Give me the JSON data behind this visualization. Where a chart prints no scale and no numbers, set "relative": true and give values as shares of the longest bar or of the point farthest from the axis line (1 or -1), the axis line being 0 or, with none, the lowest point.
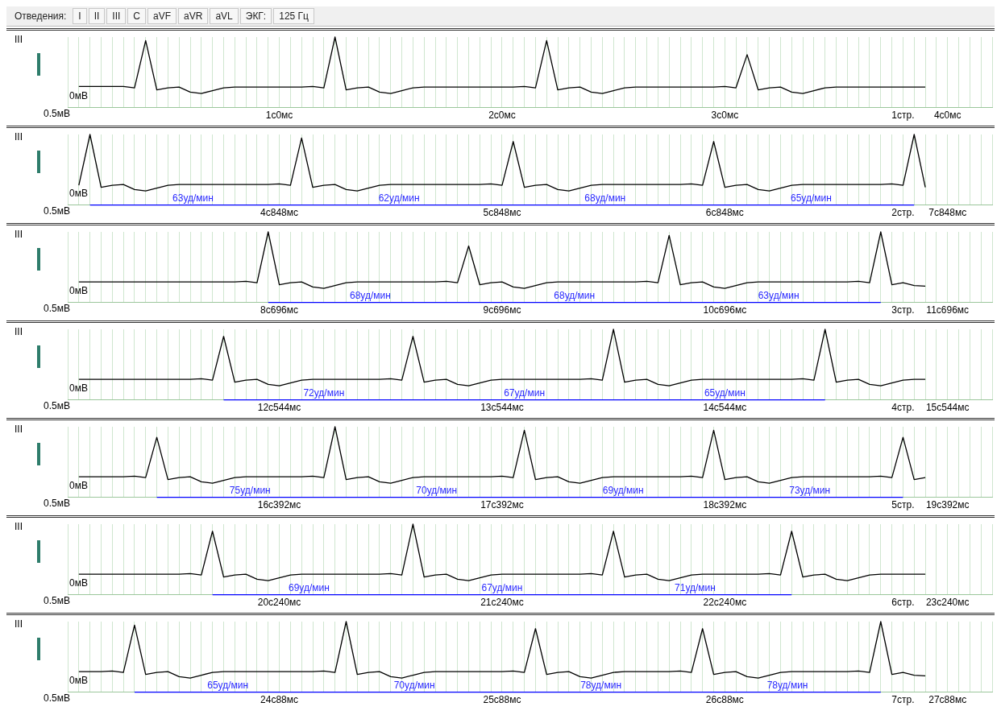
{
  "chart_data": [
    {
      "type": "other",
      "annotations": [
        "Отведения:",
        "I",
        "II",
        "III",
        "C",
        "aVF",
        "aVR",
        "aVL",
        "ЭКГ:",
        "125 Гц"
      ]
    },
    {
      "type": "line",
      "relative": true,
      "grid": "x",
      "categories": [
        null,
        null,
        null,
        null,
        null,
        null,
        null,
        null,
        null,
        null,
        null,
        null,
        null,
        null,
        null,
        null,
        null,
        null,
        null,
        "1с0мс",
        null,
        null,
        null,
        null,
        null,
        null,
        null,
        null,
        null,
        null,
        null,
        null,
        null,
        null,
        null,
        null,
        null,
        null,
        null,
        "2с0мс",
        null,
        null,
        null,
        null,
        null,
        null,
        null,
        null,
        null,
        null,
        null,
        null,
        null,
        null,
        null,
        null,
        null,
        null,
        null,
        "3с0мс",
        null,
        null,
        null,
        null,
        null,
        null,
        null,
        null,
        null,
        null,
        null,
        null,
        null,
        null,
        null,
        "1стр.",
        null,
        null,
        null,
        "4с0мс",
        null,
        null,
        null,
        null
      ],
      "annotations": [
        "III",
        "0мВ",
        "0.5мВ"
      ],
      "series": [
        {
          "color": "#000000",
          "values": [
            null,
            0.3,
            0.3,
            0.3,
            0.3,
            0.3,
            0.28,
            0.95,
            0.25,
            0.28,
            0.29,
            0.22,
            0.2,
            0.24,
            0.28,
            0.29,
            0.29,
            0.29,
            0.29,
            0.29,
            0.29,
            0.29,
            0.3,
            0.28,
            1.0,
            0.25,
            0.28,
            0.29,
            0.22,
            0.2,
            0.24,
            0.28,
            0.29,
            0.29,
            0.29,
            0.29,
            0.29,
            0.29,
            0.29,
            0.29,
            0.29,
            0.3,
            0.28,
            0.95,
            0.25,
            0.28,
            0.29,
            0.22,
            0.2,
            0.24,
            0.28,
            0.29,
            0.29,
            0.29,
            0.29,
            0.29,
            0.29,
            0.29,
            0.29,
            0.3,
            0.28,
            0.75,
            0.25,
            0.28,
            0.29,
            0.22,
            0.2,
            0.24,
            0.28,
            0.29,
            0.29,
            0.29,
            0.29,
            0.29,
            0.29,
            0.29,
            0.29,
            0.29,
            null,
            null,
            null,
            null,
            null,
            null
          ]
        }
      ]
    },
    {
      "type": "line",
      "relative": true,
      "grid": "x",
      "categories": [
        null,
        null,
        null,
        null,
        null,
        null,
        null,
        null,
        null,
        null,
        null,
        null,
        null,
        null,
        null,
        null,
        null,
        null,
        null,
        "4с848мс",
        null,
        null,
        null,
        null,
        null,
        null,
        null,
        null,
        null,
        null,
        null,
        null,
        null,
        null,
        null,
        null,
        null,
        null,
        null,
        "5с848мс",
        null,
        null,
        null,
        null,
        null,
        null,
        null,
        null,
        null,
        null,
        null,
        null,
        null,
        null,
        null,
        null,
        null,
        null,
        null,
        "6с848мс",
        null,
        null,
        null,
        null,
        null,
        null,
        null,
        null,
        null,
        null,
        null,
        null,
        null,
        null,
        null,
        "2стр.",
        null,
        null,
        null,
        "7с848мс",
        null,
        null,
        null,
        null
      ],
      "annotations": [
        "III",
        "0мВ",
        "0.5мВ",
        "63уд/мин",
        "62уд/мин",
        "68уд/мин",
        "65уд/мин"
      ],
      "series": [
        {
          "color": "#000000",
          "values": [
            null,
            0.28,
            1.0,
            0.25,
            0.28,
            0.29,
            0.22,
            0.2,
            0.24,
            0.28,
            0.29,
            0.29,
            0.29,
            0.29,
            0.29,
            0.29,
            0.29,
            0.29,
            0.29,
            0.3,
            0.28,
            0.95,
            0.25,
            0.28,
            0.29,
            0.22,
            0.2,
            0.24,
            0.28,
            0.29,
            0.29,
            0.29,
            0.29,
            0.29,
            0.29,
            0.29,
            0.29,
            0.29,
            0.3,
            0.28,
            0.9,
            0.25,
            0.28,
            0.29,
            0.22,
            0.2,
            0.24,
            0.28,
            0.29,
            0.29,
            0.29,
            0.29,
            0.29,
            0.29,
            0.29,
            0.29,
            0.3,
            0.28,
            0.9,
            0.25,
            0.28,
            0.29,
            0.22,
            0.2,
            0.24,
            0.28,
            0.29,
            0.29,
            0.29,
            0.29,
            0.29,
            0.29,
            0.29,
            0.29,
            0.3,
            0.28,
            1.0,
            0.25,
            null,
            null,
            null,
            null,
            null,
            null
          ]
        },
        {
          "color": "#0000ff",
          "values": [
            null,
            null,
            0,
            0,
            0,
            0,
            0,
            0,
            0,
            0,
            0,
            0,
            0,
            0,
            0,
            0,
            0,
            0,
            0,
            0,
            0,
            0,
            0,
            0,
            0,
            0,
            0,
            0,
            0,
            0,
            0,
            0,
            0,
            0,
            0,
            0,
            0,
            0,
            0,
            0,
            0,
            0,
            0,
            0,
            0,
            0,
            0,
            0,
            0,
            0,
            0,
            0,
            0,
            0,
            0,
            0,
            0,
            0,
            0,
            0,
            0,
            0,
            0,
            0,
            0,
            0,
            0,
            0,
            0,
            0,
            0,
            0,
            0,
            0,
            0,
            0,
            0,
            null,
            null,
            null,
            null,
            null,
            null,
            null
          ]
        }
      ]
    },
    {
      "type": "line",
      "relative": true,
      "grid": "x",
      "categories": [
        null,
        null,
        null,
        null,
        null,
        null,
        null,
        null,
        null,
        null,
        null,
        null,
        null,
        null,
        null,
        null,
        null,
        null,
        null,
        "8с696мс",
        null,
        null,
        null,
        null,
        null,
        null,
        null,
        null,
        null,
        null,
        null,
        null,
        null,
        null,
        null,
        null,
        null,
        null,
        null,
        "9с696мс",
        null,
        null,
        null,
        null,
        null,
        null,
        null,
        null,
        null,
        null,
        null,
        null,
        null,
        null,
        null,
        null,
        null,
        null,
        null,
        "10с696мс",
        null,
        null,
        null,
        null,
        null,
        null,
        null,
        null,
        null,
        null,
        null,
        null,
        null,
        null,
        null,
        "3стр.",
        null,
        null,
        null,
        "11с696мс",
        null,
        null,
        null,
        null
      ],
      "annotations": [
        "III",
        "0мВ",
        "0.5мВ",
        "68уд/мин",
        "68уд/мин",
        "63уд/мин"
      ],
      "series": [
        {
          "color": "#000000",
          "values": [
            null,
            0.29,
            0.29,
            0.29,
            0.29,
            0.29,
            0.29,
            0.29,
            0.29,
            0.29,
            0.29,
            0.29,
            0.29,
            0.29,
            0.29,
            0.29,
            0.3,
            0.28,
            1.0,
            0.25,
            0.28,
            0.29,
            0.22,
            0.2,
            0.24,
            0.28,
            0.29,
            0.29,
            0.29,
            0.29,
            0.29,
            0.29,
            0.29,
            0.29,
            0.3,
            0.28,
            0.8,
            0.25,
            0.28,
            0.29,
            0.22,
            0.2,
            0.24,
            0.28,
            0.29,
            0.29,
            0.29,
            0.29,
            0.29,
            0.29,
            0.29,
            0.29,
            0.3,
            0.28,
            0.95,
            0.25,
            0.28,
            0.29,
            0.22,
            0.2,
            0.24,
            0.28,
            0.29,
            0.29,
            0.29,
            0.29,
            0.29,
            0.29,
            0.29,
            0.29,
            0.29,
            0.3,
            0.28,
            1.0,
            0.25,
            0.28,
            0.24,
            0.23,
            null,
            null,
            null,
            null,
            null,
            null
          ]
        },
        {
          "color": "#0000ff",
          "values": [
            null,
            null,
            null,
            null,
            null,
            null,
            null,
            null,
            null,
            null,
            null,
            null,
            null,
            null,
            null,
            null,
            null,
            null,
            0,
            0,
            0,
            0,
            0,
            0,
            0,
            0,
            0,
            0,
            0,
            0,
            0,
            0,
            0,
            0,
            0,
            0,
            0,
            0,
            0,
            0,
            0,
            0,
            0,
            0,
            0,
            0,
            0,
            0,
            0,
            0,
            0,
            0,
            0,
            0,
            0,
            0,
            0,
            0,
            0,
            0,
            0,
            0,
            0,
            0,
            0,
            0,
            0,
            0,
            0,
            0,
            0,
            0,
            0,
            0,
            null,
            null,
            null,
            null,
            null,
            null,
            null,
            null,
            null,
            null
          ]
        }
      ]
    },
    {
      "type": "line",
      "relative": true,
      "grid": "x",
      "categories": [
        null,
        null,
        null,
        null,
        null,
        null,
        null,
        null,
        null,
        null,
        null,
        null,
        null,
        null,
        null,
        null,
        null,
        null,
        null,
        "12с544мс",
        null,
        null,
        null,
        null,
        null,
        null,
        null,
        null,
        null,
        null,
        null,
        null,
        null,
        null,
        null,
        null,
        null,
        null,
        null,
        "13с544мс",
        null,
        null,
        null,
        null,
        null,
        null,
        null,
        null,
        null,
        null,
        null,
        null,
        null,
        null,
        null,
        null,
        null,
        null,
        null,
        "14с544мс",
        null,
        null,
        null,
        null,
        null,
        null,
        null,
        null,
        null,
        null,
        null,
        null,
        null,
        null,
        null,
        "4стр.",
        null,
        null,
        null,
        "15с544мс",
        null,
        null,
        null,
        null
      ],
      "annotations": [
        "III",
        "0мВ",
        "0.5мВ",
        "72уд/мин",
        "67уд/мин",
        "65уд/мин"
      ],
      "series": [
        {
          "color": "#000000",
          "values": [
            null,
            0.29,
            0.29,
            0.29,
            0.29,
            0.29,
            0.29,
            0.29,
            0.29,
            0.29,
            0.29,
            0.29,
            0.3,
            0.28,
            0.9,
            0.25,
            0.28,
            0.29,
            0.22,
            0.2,
            0.24,
            0.28,
            0.29,
            0.29,
            0.29,
            0.29,
            0.29,
            0.29,
            0.29,
            0.3,
            0.28,
            0.9,
            0.25,
            0.28,
            0.29,
            0.22,
            0.2,
            0.24,
            0.28,
            0.29,
            0.29,
            0.29,
            0.29,
            0.29,
            0.29,
            0.29,
            0.29,
            0.3,
            0.28,
            1.0,
            0.25,
            0.28,
            0.29,
            0.22,
            0.2,
            0.24,
            0.28,
            0.29,
            0.29,
            0.29,
            0.29,
            0.29,
            0.29,
            0.29,
            0.29,
            0.29,
            0.3,
            0.28,
            1.0,
            0.25,
            0.28,
            0.29,
            0.22,
            0.2,
            0.24,
            0.28,
            0.29,
            0.29,
            null,
            null,
            null,
            null,
            null,
            null
          ]
        },
        {
          "color": "#0000ff",
          "values": [
            null,
            null,
            null,
            null,
            null,
            null,
            null,
            null,
            null,
            null,
            null,
            null,
            null,
            null,
            0,
            0,
            0,
            0,
            0,
            0,
            0,
            0,
            0,
            0,
            0,
            0,
            0,
            0,
            0,
            0,
            0,
            0,
            0,
            0,
            0,
            0,
            0,
            0,
            0,
            0,
            0,
            0,
            0,
            0,
            0,
            0,
            0,
            0,
            0,
            0,
            0,
            0,
            0,
            0,
            0,
            0,
            0,
            0,
            0,
            0,
            0,
            0,
            0,
            0,
            0,
            0,
            0,
            0,
            0,
            null,
            null,
            null,
            null,
            null,
            null,
            null,
            null,
            null,
            null,
            null,
            null,
            null,
            null,
            null
          ]
        }
      ]
    },
    {
      "type": "line",
      "relative": true,
      "grid": "x",
      "categories": [
        null,
        null,
        null,
        null,
        null,
        null,
        null,
        null,
        null,
        null,
        null,
        null,
        null,
        null,
        null,
        null,
        null,
        null,
        null,
        "16с392мс",
        null,
        null,
        null,
        null,
        null,
        null,
        null,
        null,
        null,
        null,
        null,
        null,
        null,
        null,
        null,
        null,
        null,
        null,
        null,
        "17с392мс",
        null,
        null,
        null,
        null,
        null,
        null,
        null,
        null,
        null,
        null,
        null,
        null,
        null,
        null,
        null,
        null,
        null,
        null,
        null,
        "18с392мс",
        null,
        null,
        null,
        null,
        null,
        null,
        null,
        null,
        null,
        null,
        null,
        null,
        null,
        null,
        null,
        "5стр.",
        null,
        null,
        null,
        "19с392мс",
        null,
        null,
        null,
        null
      ],
      "annotations": [
        "III",
        "0мВ",
        "0.5мВ",
        "75уд/мин",
        "70уд/мин",
        "69уд/мин",
        "73уд/мин"
      ],
      "series": [
        {
          "color": "#000000",
          "values": [
            null,
            0.29,
            0.29,
            0.29,
            0.29,
            0.29,
            0.3,
            0.28,
            0.85,
            0.25,
            0.28,
            0.29,
            0.22,
            0.2,
            0.24,
            0.28,
            0.29,
            0.29,
            0.29,
            0.29,
            0.29,
            0.29,
            0.3,
            0.28,
            1.0,
            0.25,
            0.28,
            0.29,
            0.22,
            0.2,
            0.24,
            0.28,
            0.29,
            0.29,
            0.29,
            0.29,
            0.29,
            0.29,
            0.29,
            0.3,
            0.28,
            0.95,
            0.25,
            0.28,
            0.29,
            0.22,
            0.2,
            0.24,
            0.28,
            0.29,
            0.29,
            0.29,
            0.29,
            0.29,
            0.29,
            0.29,
            0.3,
            0.28,
            0.95,
            0.25,
            0.28,
            0.29,
            0.22,
            0.2,
            0.24,
            0.28,
            0.29,
            0.29,
            0.29,
            0.29,
            0.29,
            0.29,
            0.29,
            0.3,
            0.28,
            0.85,
            0.25,
            0.28,
            null,
            null,
            null,
            null,
            null,
            null
          ]
        },
        {
          "color": "#0000ff",
          "values": [
            null,
            null,
            null,
            null,
            null,
            null,
            null,
            null,
            0,
            0,
            0,
            0,
            0,
            0,
            0,
            0,
            0,
            0,
            0,
            0,
            0,
            0,
            0,
            0,
            0,
            0,
            0,
            0,
            0,
            0,
            0,
            0,
            0,
            0,
            0,
            0,
            0,
            0,
            0,
            0,
            0,
            0,
            0,
            0,
            0,
            0,
            0,
            0,
            0,
            0,
            0,
            0,
            0,
            0,
            0,
            0,
            0,
            0,
            0,
            0,
            0,
            0,
            0,
            0,
            0,
            0,
            0,
            0,
            0,
            0,
            0,
            0,
            0,
            0,
            0,
            0,
            null,
            null,
            null,
            null,
            null,
            null,
            null,
            null
          ]
        }
      ]
    },
    {
      "type": "line",
      "relative": true,
      "grid": "x",
      "categories": [
        null,
        null,
        null,
        null,
        null,
        null,
        null,
        null,
        null,
        null,
        null,
        null,
        null,
        null,
        null,
        null,
        null,
        null,
        null,
        "20с240мс",
        null,
        null,
        null,
        null,
        null,
        null,
        null,
        null,
        null,
        null,
        null,
        null,
        null,
        null,
        null,
        null,
        null,
        null,
        null,
        "21с240мс",
        null,
        null,
        null,
        null,
        null,
        null,
        null,
        null,
        null,
        null,
        null,
        null,
        null,
        null,
        null,
        null,
        null,
        null,
        null,
        "22с240мс",
        null,
        null,
        null,
        null,
        null,
        null,
        null,
        null,
        null,
        null,
        null,
        null,
        null,
        null,
        null,
        "6стр.",
        null,
        null,
        null,
        "23с240мс",
        null,
        null,
        null,
        null
      ],
      "annotations": [
        "III",
        "0мВ",
        "0.5мВ",
        "69уд/мин",
        "67уд/мин",
        "71уд/мин"
      ],
      "series": [
        {
          "color": "#000000",
          "values": [
            null,
            0.29,
            0.29,
            0.29,
            0.29,
            0.29,
            0.29,
            0.29,
            0.29,
            0.29,
            0.29,
            0.3,
            0.28,
            0.9,
            0.25,
            0.28,
            0.29,
            0.22,
            0.2,
            0.24,
            0.28,
            0.29,
            0.29,
            0.29,
            0.29,
            0.29,
            0.29,
            0.29,
            0.29,
            0.3,
            0.28,
            1.0,
            0.25,
            0.28,
            0.29,
            0.22,
            0.2,
            0.24,
            0.28,
            0.29,
            0.29,
            0.29,
            0.29,
            0.29,
            0.29,
            0.29,
            0.29,
            0.3,
            0.28,
            0.9,
            0.25,
            0.28,
            0.29,
            0.22,
            0.2,
            0.24,
            0.28,
            0.29,
            0.29,
            0.29,
            0.29,
            0.29,
            0.29,
            0.3,
            0.28,
            0.9,
            0.25,
            0.28,
            0.29,
            0.22,
            0.2,
            0.24,
            0.28,
            0.29,
            0.29,
            0.29,
            0.29,
            0.29,
            null,
            null,
            null,
            null,
            null,
            null
          ]
        },
        {
          "color": "#0000ff",
          "values": [
            null,
            null,
            null,
            null,
            null,
            null,
            null,
            null,
            null,
            null,
            null,
            null,
            null,
            0,
            0,
            0,
            0,
            0,
            0,
            0,
            0,
            0,
            0,
            0,
            0,
            0,
            0,
            0,
            0,
            0,
            0,
            0,
            0,
            0,
            0,
            0,
            0,
            0,
            0,
            0,
            0,
            0,
            0,
            0,
            0,
            0,
            0,
            0,
            0,
            0,
            0,
            0,
            0,
            0,
            0,
            0,
            0,
            0,
            0,
            0,
            0,
            0,
            0,
            0,
            0,
            0,
            null,
            null,
            null,
            null,
            null,
            null,
            null,
            null,
            null,
            null,
            null,
            null,
            null,
            null,
            null,
            null,
            null,
            null
          ]
        }
      ]
    },
    {
      "type": "line",
      "relative": true,
      "grid": "x",
      "categories": [
        null,
        null,
        null,
        null,
        null,
        null,
        null,
        null,
        null,
        null,
        null,
        null,
        null,
        null,
        null,
        null,
        null,
        null,
        null,
        "24с88мс",
        null,
        null,
        null,
        null,
        null,
        null,
        null,
        null,
        null,
        null,
        null,
        null,
        null,
        null,
        null,
        null,
        null,
        null,
        null,
        "25с88мс",
        null,
        null,
        null,
        null,
        null,
        null,
        null,
        null,
        null,
        null,
        null,
        null,
        null,
        null,
        null,
        null,
        null,
        null,
        null,
        "26с88мс",
        null,
        null,
        null,
        null,
        null,
        null,
        null,
        null,
        null,
        null,
        null,
        null,
        null,
        null,
        null,
        "7стр.",
        null,
        null,
        null,
        "27с88мс",
        null,
        null,
        null,
        null
      ],
      "annotations": [
        "III",
        "0мВ",
        "0.5мВ",
        "65уд/мин",
        "70уд/мин",
        "78уд/мин",
        "78уд/мин"
      ],
      "series": [
        {
          "color": "#000000",
          "values": [
            null,
            0.29,
            0.29,
            0.29,
            0.3,
            0.28,
            0.95,
            0.25,
            0.28,
            0.29,
            0.22,
            0.2,
            0.24,
            0.28,
            0.29,
            0.29,
            0.29,
            0.29,
            0.29,
            0.29,
            0.29,
            0.29,
            0.29,
            0.3,
            0.28,
            1.0,
            0.25,
            0.28,
            0.29,
            0.22,
            0.2,
            0.24,
            0.28,
            0.29,
            0.29,
            0.29,
            0.29,
            0.29,
            0.29,
            0.29,
            0.3,
            0.28,
            0.9,
            0.25,
            0.28,
            0.29,
            0.22,
            0.2,
            0.24,
            0.28,
            0.29,
            0.29,
            0.29,
            0.29,
            0.29,
            0.3,
            0.28,
            0.9,
            0.25,
            0.28,
            0.29,
            0.22,
            0.2,
            0.24,
            0.28,
            0.29,
            0.29,
            0.29,
            0.29,
            0.29,
            0.29,
            0.3,
            0.28,
            1.0,
            0.25,
            0.28,
            0.24,
            0.23,
            null,
            null,
            null,
            null,
            null,
            null
          ]
        },
        {
          "color": "#0000ff",
          "values": [
            null,
            null,
            null,
            null,
            null,
            null,
            0,
            0,
            0,
            0,
            0,
            0,
            0,
            0,
            0,
            0,
            0,
            0,
            0,
            0,
            0,
            0,
            0,
            0,
            0,
            0,
            0,
            0,
            0,
            0,
            0,
            0,
            0,
            0,
            0,
            0,
            0,
            0,
            0,
            0,
            0,
            0,
            0,
            0,
            0,
            0,
            0,
            0,
            0,
            0,
            0,
            0,
            0,
            0,
            0,
            0,
            0,
            0,
            0,
            0,
            0,
            0,
            0,
            0,
            0,
            0,
            0,
            0,
            0,
            0,
            0,
            0,
            0,
            0,
            null,
            null,
            null,
            null,
            null,
            null,
            null,
            null,
            null,
            null
          ]
        }
      ]
    }
  ]
}
